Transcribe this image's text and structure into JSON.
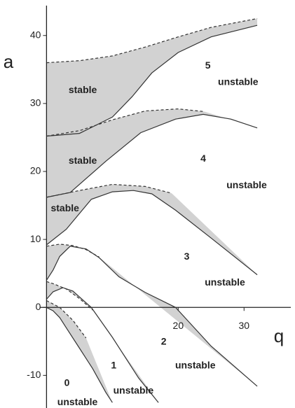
{
  "chart_data": {
    "type": "line",
    "xlabel": "q",
    "ylabel": "a",
    "xlim": [
      -1,
      37.1
    ],
    "ylim": [
      -14.8,
      44.4
    ],
    "xticks": [
      20,
      30
    ],
    "yticks": [
      40,
      30,
      20,
      10,
      0,
      -10
    ],
    "shade_color": "#d2d2d2",
    "series": [
      {
        "style": "dashed",
        "color": "#333333",
        "x": [
          0,
          5,
          10,
          15,
          20,
          25,
          32
        ],
        "values": [
          36,
          36.3,
          37,
          38.3,
          39.8,
          41.2,
          42.5
        ]
      },
      {
        "style": "solid",
        "color": "#333333",
        "x": [
          0,
          5,
          10,
          13,
          16,
          20,
          25,
          32
        ],
        "values": [
          25.2,
          25.6,
          28,
          31,
          34.5,
          37.5,
          39.8,
          41.5
        ]
      },
      {
        "style": "dashed",
        "color": "#333333",
        "x": [
          0,
          5,
          10,
          15,
          20,
          24
        ],
        "values": [
          25.2,
          26,
          27.6,
          28.9,
          29.2,
          28.8
        ]
      },
      {
        "style": "solid",
        "color": "#333333",
        "x": [
          0,
          3.6,
          9,
          14.3,
          19.6,
          23.8,
          28,
          32
        ],
        "values": [
          16.2,
          16.9,
          21.5,
          25.7,
          27.7,
          28.4,
          27.7,
          26.4
        ]
      },
      {
        "style": "dashed",
        "color": "#333333",
        "x": [
          0,
          5,
          10,
          15,
          19
        ],
        "values": [
          16.2,
          17.2,
          18.1,
          17.8,
          16.8
        ]
      },
      {
        "style": "solid",
        "color": "#333333",
        "x": [
          0,
          3,
          6.8,
          10,
          13.2,
          16,
          19.6,
          25,
          32
        ],
        "values": [
          9.2,
          11.5,
          15.9,
          17,
          17.2,
          16.7,
          14.3,
          10.2,
          4.8
        ]
      },
      {
        "style": "dashed",
        "color": "#333333",
        "x": [
          0,
          2,
          4,
          6,
          8
        ],
        "values": [
          9,
          9.3,
          9.1,
          8.5,
          7.4
        ]
      },
      {
        "style": "solid",
        "color": "#333333",
        "x": [
          0,
          1,
          2,
          3.6,
          6,
          8,
          11,
          15,
          19.6,
          25,
          32
        ],
        "values": [
          4,
          5.5,
          7.5,
          9,
          8.6,
          7.3,
          4.5,
          2.2,
          0,
          -5.7,
          -11.6
        ]
      },
      {
        "style": "dashed",
        "color": "#333333",
        "x": [
          0,
          1,
          3,
          5,
          7
        ],
        "values": [
          3.8,
          3.5,
          2.7,
          1.3,
          -0.4
        ]
      },
      {
        "style": "solid",
        "color": "#333333",
        "x": [
          0,
          1,
          2.5,
          4,
          6.8,
          10,
          14,
          17
        ],
        "values": [
          1.2,
          2.3,
          2.9,
          2.4,
          0,
          -4.4,
          -10.4,
          -14
        ]
      },
      {
        "style": "dashed",
        "color": "#333333",
        "x": [
          0,
          2,
          4,
          6
        ],
        "values": [
          1,
          0,
          -1.9,
          -4.5
        ]
      },
      {
        "style": "solid",
        "color": "#333333",
        "x": [
          0,
          1,
          2,
          3,
          5,
          7,
          9,
          10
        ],
        "values": [
          0,
          -0.5,
          -1.5,
          -3,
          -6,
          -9,
          -12.5,
          -14
        ]
      }
    ],
    "shaded_between": [
      [
        0,
        1
      ],
      [
        2,
        3
      ],
      [
        4,
        5
      ],
      [
        6,
        7
      ],
      [
        8,
        9
      ],
      [
        10,
        11
      ]
    ],
    "annotations": [
      {
        "text": "5",
        "x": 24.5,
        "y": 35.5
      },
      {
        "text": "unstable",
        "x": 29.1,
        "y": 33.1
      },
      {
        "text": "stable",
        "x": 5.5,
        "y": 31.9
      },
      {
        "text": "4",
        "x": 23.8,
        "y": 21.8
      },
      {
        "text": "unstable",
        "x": 30.4,
        "y": 17.9
      },
      {
        "text": "stable",
        "x": 5.5,
        "y": 21.5
      },
      {
        "text": "stable",
        "x": 2.8,
        "y": 14.5
      },
      {
        "text": "3",
        "x": 21.3,
        "y": 7.4
      },
      {
        "text": "unstable",
        "x": 27.1,
        "y": 3.6
      },
      {
        "text": "2",
        "x": 17.8,
        "y": -5.1
      },
      {
        "text": "unstable",
        "x": 22.6,
        "y": -8.6
      },
      {
        "text": "1",
        "x": 10.2,
        "y": -8.6
      },
      {
        "text": "unstable",
        "x": 13.2,
        "y": -12.3
      },
      {
        "text": "0",
        "x": 3.1,
        "y": -11.2
      },
      {
        "text": "unstable",
        "x": 4.7,
        "y": -14
      }
    ]
  }
}
